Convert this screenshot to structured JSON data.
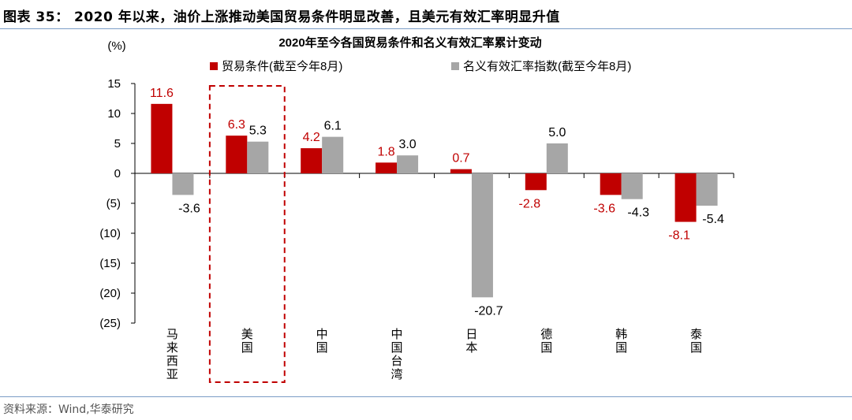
{
  "figure": {
    "title": "图表 35：  2020 年以来，油价上涨推动美国贸易条件明显改善，且美元有效汇率明显升值",
    "source": "资料来源：Wind,华泰研究"
  },
  "chart_data": {
    "type": "bar",
    "title": "2020年至今各国贸易条件和名义有效汇率累计变动",
    "ylabel": "(%)",
    "ylim": [
      -25,
      15
    ],
    "yticks": [
      15,
      10,
      5,
      0,
      -5,
      -10,
      -15,
      -20,
      -25
    ],
    "ytick_labels": [
      "15",
      "10",
      "5",
      "0",
      "(5)",
      "(10)",
      "(15)",
      "(20)",
      "(25)"
    ],
    "categories": [
      "马来西亚",
      "美国",
      "中国",
      "中国台湾",
      "日本",
      "德国",
      "韩国",
      "泰国"
    ],
    "series": [
      {
        "name": "贸易条件(截至今年8月)",
        "color": "#c00000",
        "label_color": "#c00000",
        "values": [
          11.6,
          6.3,
          4.2,
          1.8,
          0.7,
          -2.8,
          -3.6,
          -8.1
        ]
      },
      {
        "name": "名义有效汇率指数(截至今年8月)",
        "color": "#a6a6a6",
        "label_color": "#000000",
        "values": [
          -3.6,
          5.3,
          6.1,
          3.0,
          -20.7,
          5.0,
          -4.3,
          -5.4
        ]
      }
    ],
    "highlight": {
      "category": "美国",
      "style": "dashed box",
      "color": "#c00000"
    },
    "legend_position": "top-left",
    "grid": false
  }
}
